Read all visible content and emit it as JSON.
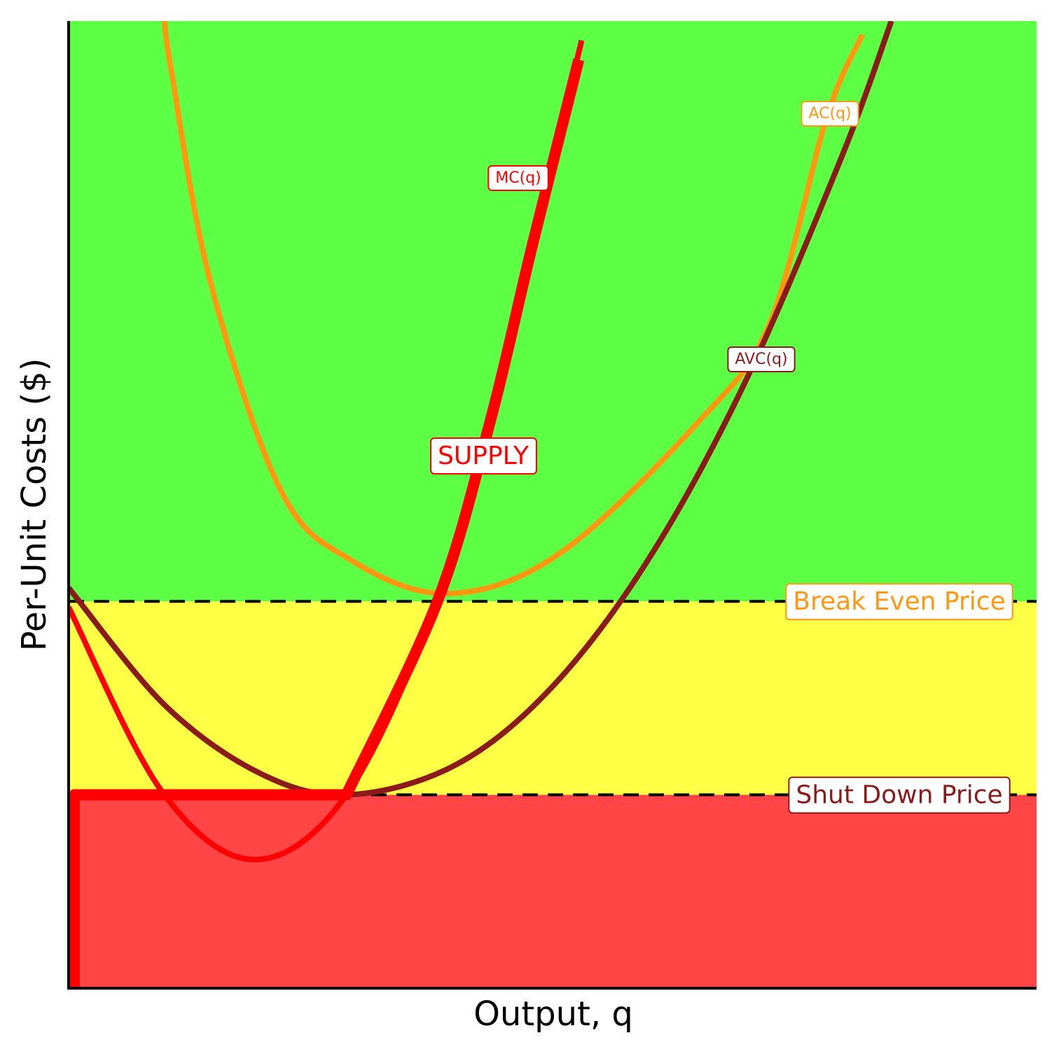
{
  "chart_data": {
    "type": "line",
    "xlabel": "Output, q",
    "ylabel": "Per-Unit Costs ($)",
    "xlim": [
      0,
      10
    ],
    "ylim": [
      0,
      10
    ],
    "regions": [
      {
        "from": 0,
        "to": 2,
        "color": "#ff4545"
      },
      {
        "from": 2,
        "to": 4,
        "color": "#ffff45"
      },
      {
        "from": 4,
        "to": 10,
        "color": "#5dff45"
      }
    ],
    "price_lines": [
      {
        "label": "Break Even Price",
        "value": 4,
        "color": "#ff9810"
      },
      {
        "label": "Shut Down Price",
        "value": 2,
        "color": "#8b1a1a"
      }
    ],
    "series": [
      {
        "name": "AC(q)",
        "color": "#ff9810",
        "x": [
          0.99,
          1.06,
          1.46,
          2.19,
          2.91,
          3.92,
          5.08,
          6.53,
          7.25,
          7.83,
          8.2
        ],
        "values": [
          10,
          9.49,
          7.32,
          5.15,
          4.43,
          4.08,
          4.5,
          5.88,
          6.89,
          9.0,
          9.86
        ]
      },
      {
        "name": "AVC(q)",
        "color": "#8b1a1a",
        "x": [
          0,
          1,
          2,
          2.9,
          4,
          5,
          6,
          7,
          8,
          8.5
        ],
        "values": [
          4.14,
          2.92,
          2.21,
          2,
          2.31,
          3.12,
          4.45,
          6.29,
          8.63,
          10.0
        ]
      },
      {
        "name": "MC(q)",
        "color": "#ff0000",
        "x": [
          0,
          0.96,
          1.91,
          2.87,
          3.81,
          4.36,
          4.79,
          5.3
        ],
        "values": [
          3.94,
          2.04,
          1.33,
          2,
          4,
          5.88,
          7.68,
          9.8
        ]
      },
      {
        "name": "SUPPLY",
        "color": "#ff0000",
        "x": [
          0,
          0,
          2.87,
          3.81,
          4.36,
          4.79,
          5.27
        ],
        "values": [
          0,
          2,
          2,
          4,
          5.88,
          7.68,
          9.6
        ]
      }
    ]
  }
}
